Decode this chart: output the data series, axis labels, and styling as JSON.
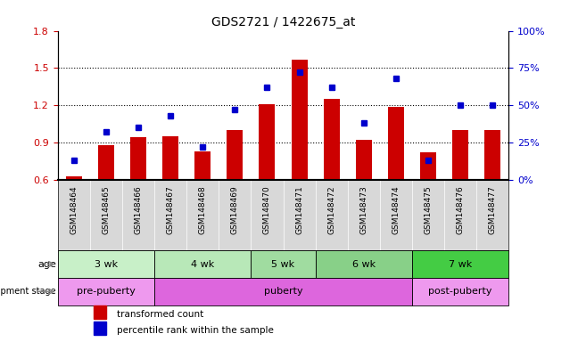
{
  "title": "GDS2721 / 1422675_at",
  "samples": [
    "GSM148464",
    "GSM148465",
    "GSM148466",
    "GSM148467",
    "GSM148468",
    "GSM148469",
    "GSM148470",
    "GSM148471",
    "GSM148472",
    "GSM148473",
    "GSM148474",
    "GSM148475",
    "GSM148476",
    "GSM148477"
  ],
  "transformed_count": [
    0.63,
    0.88,
    0.94,
    0.95,
    0.83,
    1.0,
    1.21,
    1.57,
    1.25,
    0.92,
    1.19,
    0.82,
    1.0,
    1.0
  ],
  "percentile_rank": [
    13,
    32,
    35,
    43,
    22,
    47,
    62,
    72,
    62,
    38,
    68,
    13,
    50,
    50
  ],
  "bar_color": "#cc0000",
  "dot_color": "#0000cc",
  "ylim_left": [
    0.6,
    1.8
  ],
  "ylim_right": [
    0,
    100
  ],
  "yticks_left": [
    0.6,
    0.9,
    1.2,
    1.5,
    1.8
  ],
  "yticks_right": [
    0,
    25,
    50,
    75,
    100
  ],
  "ytick_labels_right": [
    "0%",
    "25%",
    "50%",
    "75%",
    "100%"
  ],
  "age_groups": [
    {
      "label": "3 wk",
      "start": 0,
      "end": 2,
      "color": "#c8f0c8"
    },
    {
      "label": "4 wk",
      "start": 3,
      "end": 5,
      "color": "#b8e8b8"
    },
    {
      "label": "5 wk",
      "start": 6,
      "end": 7,
      "color": "#a0dca0"
    },
    {
      "label": "6 wk",
      "start": 8,
      "end": 10,
      "color": "#88d088"
    },
    {
      "label": "7 wk",
      "start": 11,
      "end": 13,
      "color": "#44cc44"
    }
  ],
  "dev_groups": [
    {
      "label": "pre-puberty",
      "start": 0,
      "end": 2,
      "color": "#ee99ee"
    },
    {
      "label": "puberty",
      "start": 3,
      "end": 10,
      "color": "#dd66dd"
    },
    {
      "label": "post-puberty",
      "start": 11,
      "end": 13,
      "color": "#ee99ee"
    }
  ],
  "bg_color": "#ffffff",
  "tick_area_color": "#d8d8d8",
  "grid_color": "#000000",
  "age_label": "age",
  "dev_label": "development stage",
  "legend_items": [
    {
      "label": "transformed count",
      "color": "#cc0000"
    },
    {
      "label": "percentile rank within the sample",
      "color": "#0000cc"
    }
  ]
}
